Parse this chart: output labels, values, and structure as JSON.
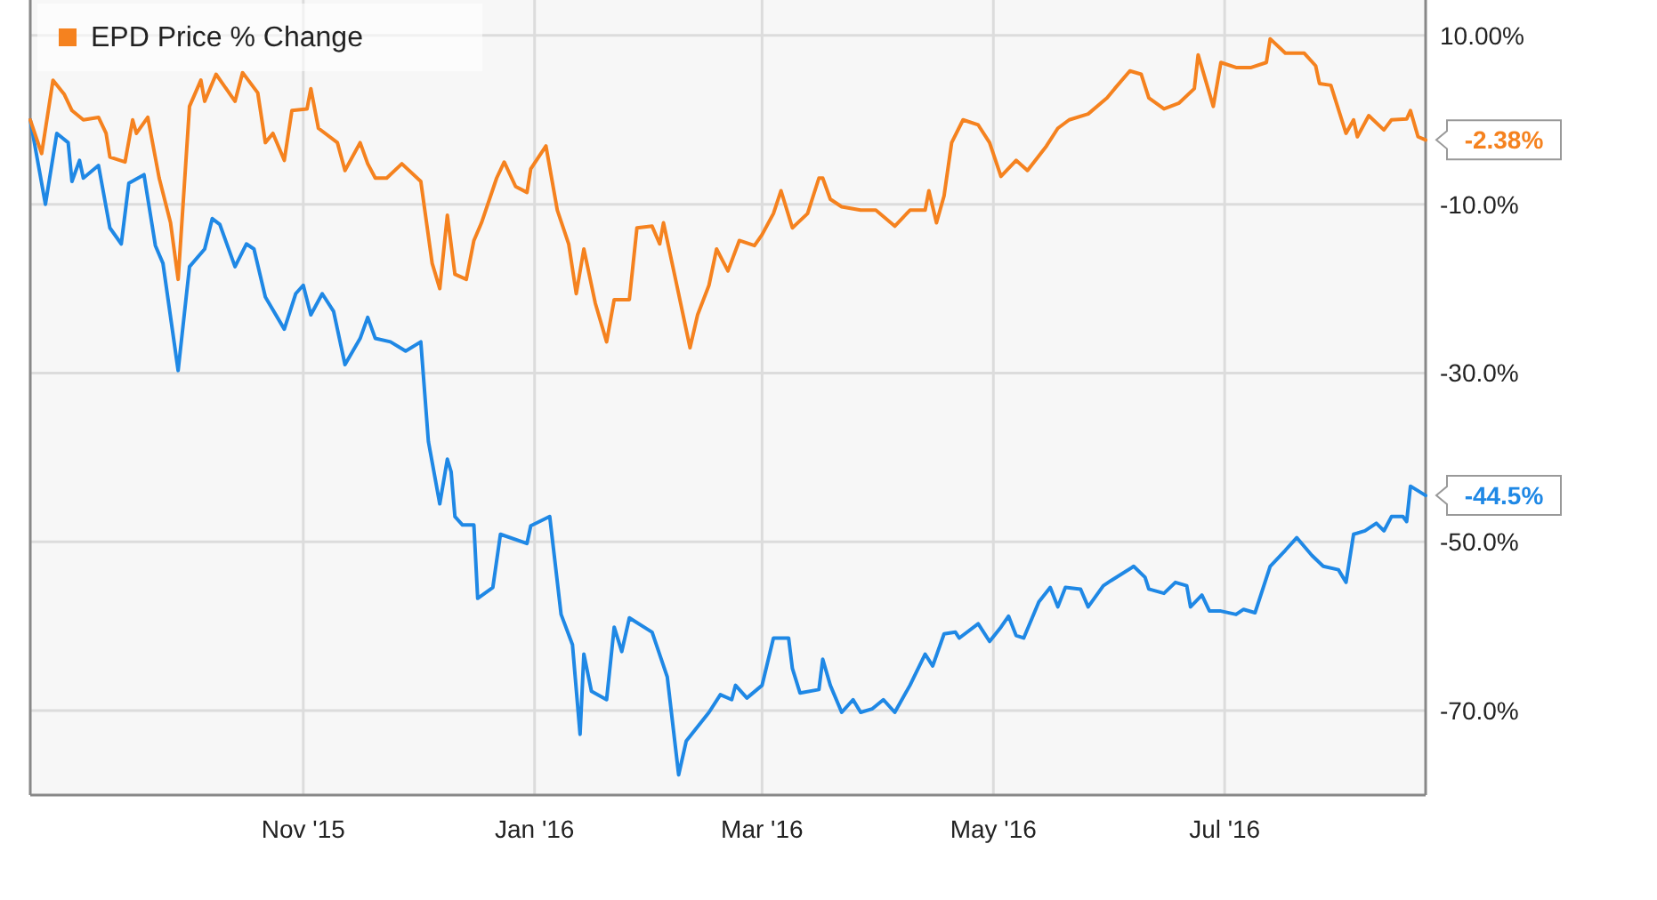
{
  "chart_data": {
    "type": "line",
    "legend": "top left",
    "grid": true,
    "xlim": [
      "2015-08-21",
      "2016-08-23"
    ],
    "xticks": [
      {
        "value": "2015-11-01",
        "label": "Nov '15"
      },
      {
        "value": "2016-01-01",
        "label": "Jan '16"
      },
      {
        "value": "2016-03-01",
        "label": "Mar '16"
      },
      {
        "value": "2016-05-01",
        "label": "May '16"
      },
      {
        "value": "2016-07-01",
        "label": "Jul '16"
      }
    ],
    "ylim": [
      -80,
      14.2
    ],
    "yticks": [
      {
        "value": 10,
        "label": "10.00%"
      },
      {
        "value": -10,
        "label": "-10.0%"
      },
      {
        "value": -30,
        "label": "-30.0%"
      },
      {
        "value": -50,
        "label": "-50.0%"
      },
      {
        "value": -70,
        "label": "-70.0%"
      }
    ],
    "annotations": [
      {
        "text": "-44.5%",
        "x": "2016-08-23",
        "y": -44.5
      },
      {
        "text": "-2.38%",
        "x": "2016-08-23",
        "y": -2.38
      }
    ],
    "series": [
      {
        "color": "#1f88e5",
        "x": [
          "2015-08-21",
          "2015-08-25",
          "2015-08-28",
          "2015-08-31",
          "2015-09-01",
          "2015-09-03",
          "2015-09-04",
          "2015-09-08",
          "2015-09-11",
          "2015-09-14",
          "2015-09-16",
          "2015-09-20",
          "2015-09-23",
          "2015-09-25",
          "2015-09-29",
          "2015-10-02",
          "2015-10-06",
          "2015-10-08",
          "2015-10-10",
          "2015-10-14",
          "2015-10-17",
          "2015-10-19",
          "2015-10-22",
          "2015-10-27",
          "2015-10-30",
          "2015-11-01",
          "2015-11-03",
          "2015-11-06",
          "2015-11-09",
          "2015-11-12",
          "2015-11-16",
          "2015-11-18",
          "2015-11-20",
          "2015-11-24",
          "2015-11-28",
          "2015-12-02",
          "2015-12-04",
          "2015-12-07",
          "2015-12-09",
          "2015-12-10",
          "2015-12-11",
          "2015-12-13",
          "2015-12-16",
          "2015-12-17",
          "2015-12-21",
          "2015-12-23",
          "2015-12-30",
          "2015-12-31",
          "2016-01-05",
          "2016-01-08",
          "2016-01-11",
          "2016-01-13",
          "2016-01-14",
          "2016-01-16",
          "2016-01-20",
          "2016-01-22",
          "2016-01-24",
          "2016-01-26",
          "2016-02-01",
          "2016-02-05",
          "2016-02-08",
          "2016-02-10",
          "2016-02-16",
          "2016-02-19",
          "2016-02-22",
          "2016-02-23",
          "2016-02-26",
          "2016-03-01",
          "2016-03-04",
          "2016-03-08",
          "2016-03-09",
          "2016-03-11",
          "2016-03-16",
          "2016-03-17",
          "2016-03-19",
          "2016-03-22",
          "2016-03-25",
          "2016-03-27",
          "2016-03-30",
          "2016-04-02",
          "2016-04-05",
          "2016-04-09",
          "2016-04-13",
          "2016-04-15",
          "2016-04-18",
          "2016-04-21",
          "2016-04-22",
          "2016-04-27",
          "2016-04-30",
          "2016-05-03",
          "2016-05-05",
          "2016-05-07",
          "2016-05-09",
          "2016-05-13",
          "2016-05-16",
          "2016-05-18",
          "2016-05-20",
          "2016-05-24",
          "2016-05-26",
          "2016-05-30",
          "2016-06-01",
          "2016-06-07",
          "2016-06-10",
          "2016-06-11",
          "2016-06-15",
          "2016-06-18",
          "2016-06-21",
          "2016-06-22",
          "2016-06-25",
          "2016-06-27",
          "2016-06-30",
          "2016-07-04",
          "2016-07-06",
          "2016-07-09",
          "2016-07-13",
          "2016-07-17",
          "2016-07-20",
          "2016-07-24",
          "2016-07-27",
          "2016-07-31",
          "2016-08-02",
          "2016-08-04",
          "2016-08-07",
          "2016-08-10",
          "2016-08-12",
          "2016-08-14",
          "2016-08-17",
          "2016-08-18",
          "2016-08-19",
          "2016-08-23"
        ],
        "values": [
          0,
          -10,
          -1.6,
          -2.7,
          -7.3,
          -4.8,
          -6.9,
          -5.4,
          -12.8,
          -14.7,
          -7.5,
          -6.5,
          -14.9,
          -17,
          -29.7,
          -17.4,
          -15.3,
          -11.7,
          -12.4,
          -17.4,
          -14.7,
          -15.3,
          -21,
          -24.8,
          -20.6,
          -19.6,
          -23.1,
          -20.6,
          -22.7,
          -29,
          -25.9,
          -23.4,
          -25.9,
          -26.3,
          -27.4,
          -26.3,
          -38.1,
          -45.5,
          -40.2,
          -41.7,
          -47,
          -48,
          -48,
          -56.7,
          -55.4,
          -49.1,
          -50.2,
          -48.1,
          -47,
          -58.6,
          -62.2,
          -72.8,
          -63.3,
          -67.7,
          -68.7,
          -60.1,
          -63,
          -59,
          -60.7,
          -66,
          -77.6,
          -73.6,
          -70.2,
          -68.1,
          -68.7,
          -67,
          -68.5,
          -67,
          -61.4,
          -61.4,
          -65,
          -67.9,
          -67.5,
          -63.9,
          -67,
          -70.2,
          -68.7,
          -70.2,
          -69.8,
          -68.7,
          -70.2,
          -67,
          -63.3,
          -64.7,
          -60.9,
          -60.7,
          -61.4,
          -59.7,
          -61.8,
          -60.1,
          -58.8,
          -61.1,
          -61.4,
          -57.1,
          -55.4,
          -57.7,
          -55.4,
          -55.6,
          -57.7,
          -55.2,
          -54.6,
          -52.9,
          -54.2,
          -55.6,
          -56.1,
          -54.8,
          -55.2,
          -57.7,
          -56.3,
          -58.2,
          -58.2,
          -58.6,
          -58,
          -58.4,
          -52.9,
          -51,
          -49.5,
          -51.6,
          -52.9,
          -53.3,
          -54.8,
          -49.1,
          -48.7,
          -47.8,
          -48.7,
          -47,
          -47,
          -47.6,
          -43.4,
          -44.5
        ]
      },
      {
        "name": "EPD Price % Change",
        "color": "#f5821f",
        "x": [
          "2015-08-21",
          "2015-08-24",
          "2015-08-27",
          "2015-08-30",
          "2015-09-01",
          "2015-09-04",
          "2015-09-08",
          "2015-09-10",
          "2015-09-11",
          "2015-09-15",
          "2015-09-17",
          "2015-09-18",
          "2015-09-21",
          "2015-09-24",
          "2015-09-27",
          "2015-09-29",
          "2015-10-02",
          "2015-10-05",
          "2015-10-06",
          "2015-10-09",
          "2015-10-14",
          "2015-10-16",
          "2015-10-20",
          "2015-10-22",
          "2015-10-24",
          "2015-10-27",
          "2015-10-29",
          "2015-11-02",
          "2015-11-03",
          "2015-11-05",
          "2015-11-10",
          "2015-11-12",
          "2015-11-16",
          "2015-11-18",
          "2015-11-20",
          "2015-11-23",
          "2015-11-27",
          "2015-12-02",
          "2015-12-05",
          "2015-12-07",
          "2015-12-09",
          "2015-12-11",
          "2015-12-14",
          "2015-12-16",
          "2015-12-18",
          "2015-12-22",
          "2015-12-24",
          "2015-12-27",
          "2015-12-30",
          "2015-12-31",
          "2016-01-04",
          "2016-01-07",
          "2016-01-10",
          "2016-01-12",
          "2016-01-14",
          "2016-01-17",
          "2016-01-20",
          "2016-01-22",
          "2016-01-26",
          "2016-01-28",
          "2016-02-01",
          "2016-02-03",
          "2016-02-04",
          "2016-02-07",
          "2016-02-11",
          "2016-02-13",
          "2016-02-16",
          "2016-02-18",
          "2016-02-21",
          "2016-02-24",
          "2016-02-28",
          "2016-03-01",
          "2016-03-04",
          "2016-03-06",
          "2016-03-09",
          "2016-03-13",
          "2016-03-16",
          "2016-03-17",
          "2016-03-19",
          "2016-03-22",
          "2016-03-27",
          "2016-03-31",
          "2016-04-05",
          "2016-04-09",
          "2016-04-13",
          "2016-04-14",
          "2016-04-16",
          "2016-04-18",
          "2016-04-20",
          "2016-04-23",
          "2016-04-27",
          "2016-04-30",
          "2016-05-03",
          "2016-05-07",
          "2016-05-10",
          "2016-05-15",
          "2016-05-18",
          "2016-05-21",
          "2016-05-26",
          "2016-05-31",
          "2016-06-02",
          "2016-06-06",
          "2016-06-09",
          "2016-06-11",
          "2016-06-15",
          "2016-06-19",
          "2016-06-23",
          "2016-06-24",
          "2016-06-28",
          "2016-06-30",
          "2016-07-04",
          "2016-07-08",
          "2016-07-12",
          "2016-07-13",
          "2016-07-17",
          "2016-07-22",
          "2016-07-25",
          "2016-07-26",
          "2016-07-29",
          "2016-08-02",
          "2016-08-04",
          "2016-08-05",
          "2016-08-08",
          "2016-08-12",
          "2016-08-14",
          "2016-08-18",
          "2016-08-19",
          "2016-08-21",
          "2016-08-23"
        ],
        "values": [
          0,
          -4,
          4.7,
          3,
          1.1,
          0,
          0.3,
          -1.6,
          -4.4,
          -5,
          0,
          -1.6,
          0.3,
          -6.9,
          -12.2,
          -18.9,
          1.6,
          4.7,
          2.2,
          5.4,
          2.2,
          5.6,
          3.2,
          -2.7,
          -1.6,
          -4.8,
          1.1,
          1.3,
          3.7,
          -1,
          -2.7,
          -6,
          -2.7,
          -5.2,
          -6.9,
          -6.9,
          -5.2,
          -7.3,
          -17,
          -20,
          -11.3,
          -18.3,
          -18.9,
          -14.3,
          -12.2,
          -6.9,
          -5,
          -7.9,
          -8.6,
          -5.8,
          -3.1,
          -10.7,
          -14.7,
          -20.6,
          -15.3,
          -21.7,
          -26.3,
          -21.3,
          -21.3,
          -12.8,
          -12.6,
          -14.7,
          -12.2,
          -18.5,
          -27,
          -23.1,
          -19.6,
          -15.3,
          -17.9,
          -14.3,
          -14.9,
          -13.6,
          -11.1,
          -8.4,
          -12.8,
          -11.1,
          -6.9,
          -6.9,
          -9.4,
          -10.3,
          -10.7,
          -10.7,
          -12.6,
          -10.7,
          -10.7,
          -8.4,
          -12.2,
          -9,
          -2.7,
          0,
          -0.6,
          -2.7,
          -6.7,
          -4.8,
          -6,
          -3.1,
          -1,
          0,
          0.7,
          2.6,
          3.7,
          5.8,
          5.4,
          2.6,
          1.3,
          2,
          3.7,
          7.7,
          1.6,
          6.8,
          6.2,
          6.2,
          6.8,
          9.6,
          7.9,
          7.9,
          6.4,
          4.3,
          4.1,
          -1.6,
          0,
          -2,
          0.5,
          -1.2,
          0,
          0.1,
          1.1,
          -2,
          -2.38
        ]
      }
    ]
  }
}
